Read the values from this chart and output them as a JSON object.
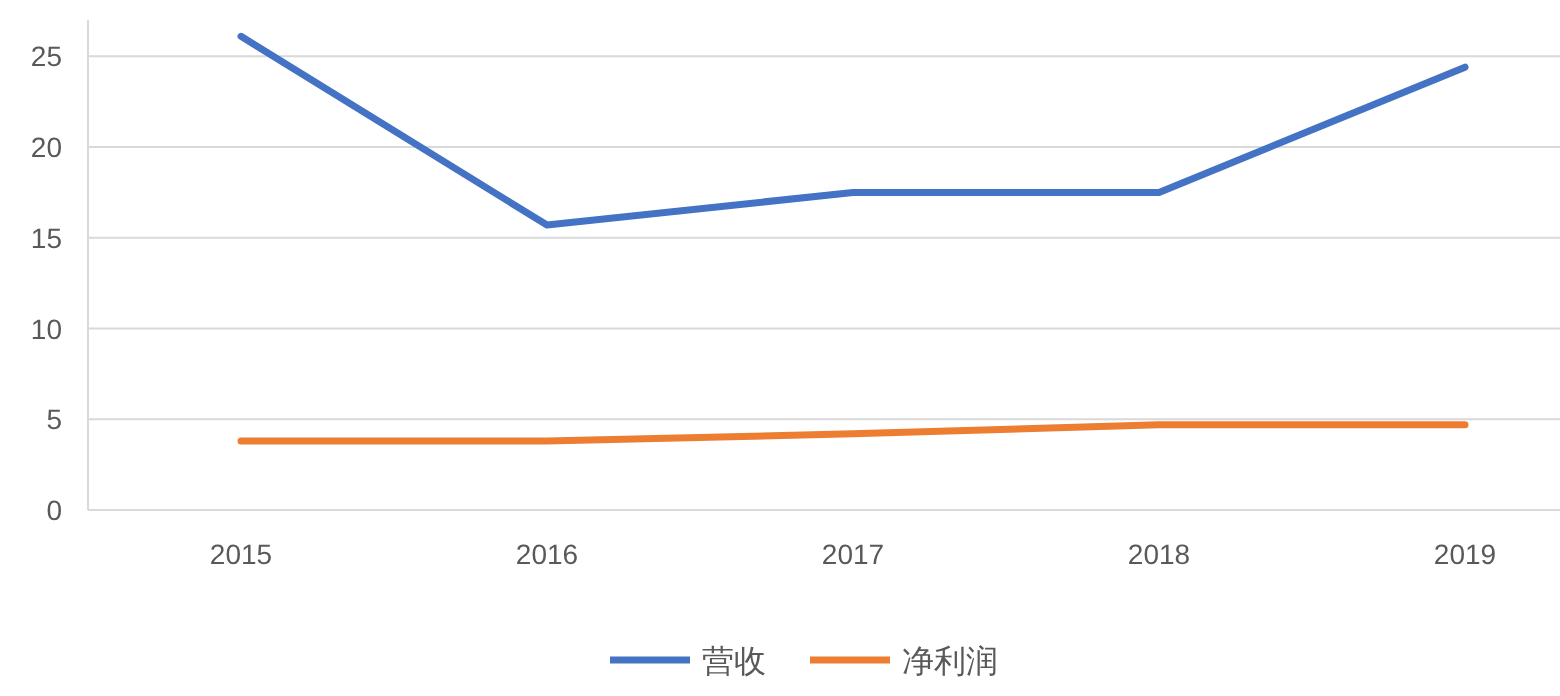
{
  "chart_data": {
    "type": "line",
    "categories": [
      "2015",
      "2016",
      "2017",
      "2018",
      "2019"
    ],
    "series": [
      {
        "name": "营收",
        "color": "#4472c4",
        "values": [
          26.1,
          15.7,
          17.5,
          17.5,
          24.4
        ]
      },
      {
        "name": "净利润",
        "color": "#ed7d31",
        "values": [
          3.8,
          3.8,
          4.2,
          4.7,
          4.7
        ]
      }
    ],
    "ylim": [
      0,
      27
    ],
    "yticks": [
      0,
      5,
      10,
      15,
      20,
      25
    ],
    "grid": "y",
    "legend": "bottom",
    "marker": "none",
    "line_style": "solid"
  }
}
